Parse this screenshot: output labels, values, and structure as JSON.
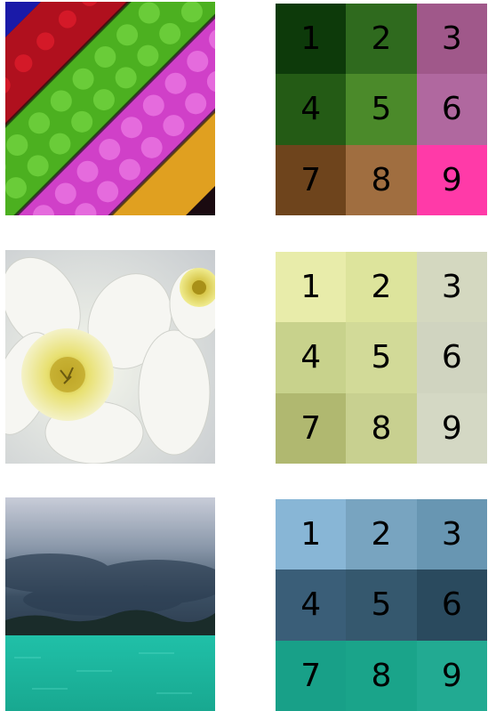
{
  "rows": [
    {
      "image": "lego-bricks-photo",
      "cells": [
        {
          "label": "1",
          "color": "#0d3a0a"
        },
        {
          "label": "2",
          "color": "#2f6a1e"
        },
        {
          "label": "3",
          "color": "#a0588a"
        },
        {
          "label": "4",
          "color": "#245b15"
        },
        {
          "label": "5",
          "color": "#4b8a2a"
        },
        {
          "label": "6",
          "color": "#b0689f"
        },
        {
          "label": "7",
          "color": "#6e441c"
        },
        {
          "label": "8",
          "color": "#a06e40"
        },
        {
          "label": "9",
          "color": "#ff3aa8"
        }
      ]
    },
    {
      "image": "daffodil-flower-photo",
      "cells": [
        {
          "label": "1",
          "color": "#e8ecaa"
        },
        {
          "label": "2",
          "color": "#dde49c"
        },
        {
          "label": "3",
          "color": "#d4d8c0"
        },
        {
          "label": "4",
          "color": "#c8d28c"
        },
        {
          "label": "5",
          "color": "#d2da98"
        },
        {
          "label": "6",
          "color": "#d0d4c0"
        },
        {
          "label": "7",
          "color": "#b0b870"
        },
        {
          "label": "8",
          "color": "#c8d090"
        },
        {
          "label": "9",
          "color": "#d4d8c4"
        }
      ]
    },
    {
      "image": "stormy-sea-photo",
      "cells": [
        {
          "label": "1",
          "color": "#88b6d6"
        },
        {
          "label": "2",
          "color": "#78a4c0"
        },
        {
          "label": "3",
          "color": "#6896b2"
        },
        {
          "label": "4",
          "color": "#3a5e78"
        },
        {
          "label": "5",
          "color": "#35586e"
        },
        {
          "label": "6",
          "color": "#2a4a5e"
        },
        {
          "label": "7",
          "color": "#18a088"
        },
        {
          "label": "8",
          "color": "#1aa48a"
        },
        {
          "label": "9",
          "color": "#22aa92"
        }
      ]
    }
  ]
}
